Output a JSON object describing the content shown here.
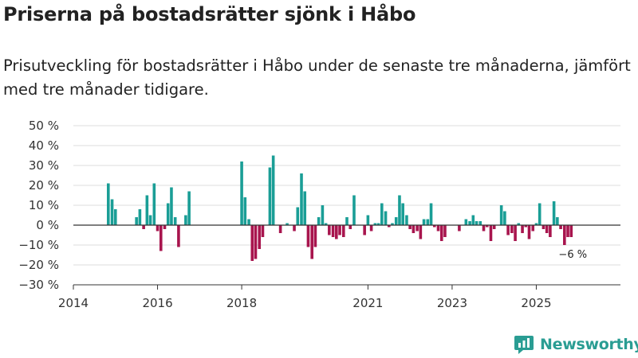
{
  "title": "Priserna på bostadsrätter sjönk i Håbo",
  "subtitle": "Prisutveckling för bostadsrätter i Håbo under de senaste tre månaderna, jämfört med tre månader tidigare.",
  "brand": {
    "name": "Newsworthy",
    "icon": "newsworthy-logo-icon",
    "color": "#2a9d93"
  },
  "colors": {
    "positive": "#1a9e96",
    "negative": "#a8154e",
    "grid": "#dddddd",
    "axis": "#333333"
  },
  "chart_data": {
    "type": "bar",
    "title": "",
    "xlabel": "",
    "ylabel": "",
    "ylim": [
      -30,
      50
    ],
    "y_ticks": [
      50,
      40,
      30,
      20,
      10,
      0,
      -10,
      -20,
      -30
    ],
    "y_tick_labels": [
      "50 %",
      "40 %",
      "30 %",
      "20 %",
      "10 %",
      "0 %",
      "−10 %",
      "−20 %",
      "−30 %"
    ],
    "x_range": [
      2014.0,
      2027.0
    ],
    "x_ticks": [
      2014,
      2016,
      2018,
      2021,
      2023,
      2025
    ],
    "x_tick_labels": [
      "2014",
      "2016",
      "2018",
      "2021",
      "2023",
      "2025"
    ],
    "x_tick_positions": [
      2014.0,
      2016.0,
      2018.0,
      2021.0,
      2023.0,
      2025.0
    ],
    "grid": true,
    "annotation": {
      "text": "−6 %",
      "x": 2025.83,
      "y": -6
    },
    "series": [
      {
        "name": "Prisutveckling",
        "x": [
          2014.83,
          2014.92,
          2015.0,
          2015.5,
          2015.58,
          2015.67,
          2015.75,
          2015.83,
          2015.92,
          2016.0,
          2016.08,
          2016.17,
          2016.25,
          2016.33,
          2016.42,
          2016.5,
          2016.58,
          2016.67,
          2016.75,
          2018.0,
          2018.08,
          2018.17,
          2018.25,
          2018.33,
          2018.42,
          2018.5,
          2018.67,
          2018.75,
          2018.92,
          2019.08,
          2019.25,
          2019.33,
          2019.42,
          2019.5,
          2019.58,
          2019.67,
          2019.75,
          2019.83,
          2019.92,
          2020.0,
          2020.08,
          2020.17,
          2020.25,
          2020.33,
          2020.42,
          2020.5,
          2020.58,
          2020.67,
          2020.92,
          2021.0,
          2021.08,
          2021.17,
          2021.25,
          2021.33,
          2021.42,
          2021.5,
          2021.58,
          2021.67,
          2021.75,
          2021.83,
          2021.92,
          2022.0,
          2022.08,
          2022.17,
          2022.25,
          2022.33,
          2022.42,
          2022.5,
          2022.58,
          2022.67,
          2022.75,
          2022.83,
          2023.17,
          2023.33,
          2023.42,
          2023.5,
          2023.58,
          2023.67,
          2023.75,
          2023.83,
          2023.92,
          2024.0,
          2024.17,
          2024.25,
          2024.33,
          2024.42,
          2024.5,
          2024.58,
          2024.67,
          2024.75,
          2024.83,
          2024.92,
          2025.0,
          2025.08,
          2025.17,
          2025.25,
          2025.33,
          2025.42,
          2025.5,
          2025.58,
          2025.67,
          2025.75,
          2025.83
        ],
        "values": [
          21,
          13,
          8,
          4,
          8,
          -2,
          15,
          5,
          21,
          -3,
          -13,
          -2,
          11,
          19,
          4,
          -11,
          0,
          5,
          17,
          32,
          14,
          3,
          -18,
          -17,
          -12,
          -6,
          29,
          35,
          -4,
          1,
          -3,
          9,
          26,
          17,
          -11,
          -17,
          -11,
          4,
          10,
          1,
          -5,
          -6,
          -7,
          -5,
          -6,
          4,
          -2,
          15,
          -5,
          5,
          -3,
          1,
          1,
          11,
          7,
          -1,
          1,
          4,
          15,
          11,
          5,
          -2,
          -4,
          -3,
          -7,
          3,
          3,
          11,
          -1,
          -3,
          -8,
          -6,
          -3,
          3,
          2,
          5,
          2,
          2,
          -3,
          -1,
          -8,
          -2,
          10,
          7,
          -5,
          -4,
          -8,
          1,
          -4,
          -1,
          -7,
          -3,
          1,
          11,
          -2,
          -4,
          -6,
          12,
          4,
          -2,
          -10,
          -6,
          -6
        ]
      }
    ]
  }
}
